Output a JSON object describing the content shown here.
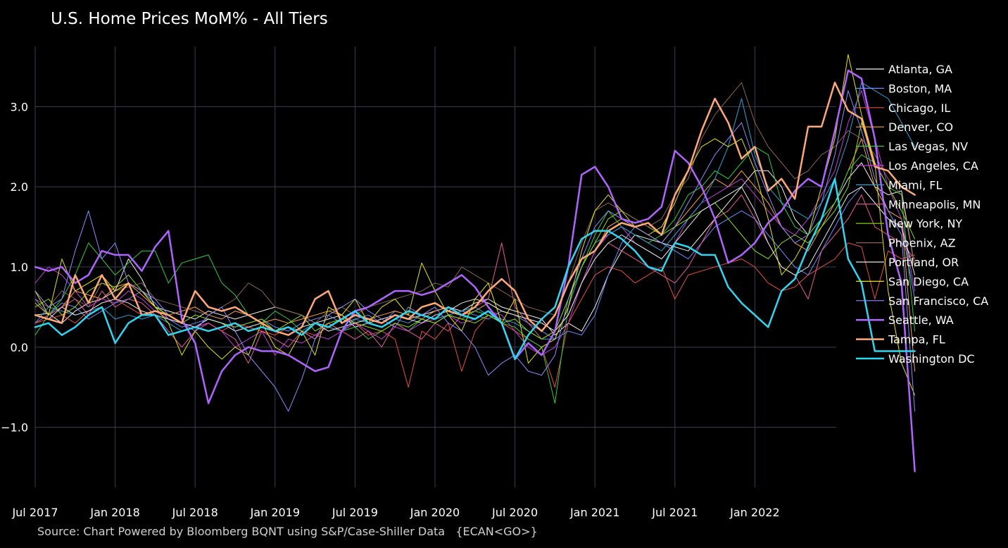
{
  "chart_data": {
    "type": "line",
    "title": "U.S. Home Prices MoM% - All Tiers",
    "source": "Source: Chart Powered by Bloomberg BQNT using S&P/Case-Shiller Data   {ECAN<GO>}",
    "xlabel": "",
    "ylabel": "",
    "x_start": "2017-07",
    "x_end": "2022-07",
    "ylim": [
      -1.75,
      3.75
    ],
    "y_ticks": [
      -1.0,
      0.0,
      1.0,
      2.0,
      3.0
    ],
    "y_tick_labels": [
      "−1.0",
      "0.0",
      "1.0",
      "2.0",
      "3.0"
    ],
    "x_ticks": [
      "2017-07",
      "2018-01",
      "2018-07",
      "2019-01",
      "2019-07",
      "2020-01",
      "2020-07",
      "2021-01",
      "2021-07",
      "2022-01"
    ],
    "x_tick_labels": [
      "Jul 2017",
      "Jan 2018",
      "Jul 2018",
      "Jan 2019",
      "Jul 2019",
      "Jan 2020",
      "Jul 2020",
      "Jan 2021",
      "Jul 2021",
      "Jan 2022"
    ],
    "grid": true,
    "legend_position": "right",
    "background": "#000000",
    "grid_color": "#3a3d52",
    "series": [
      {
        "name": "Atlanta, GA",
        "color": "#f2f2f2",
        "width": 1,
        "values": [
          0.4,
          0.42,
          0.3,
          0.45,
          0.55,
          0.6,
          0.7,
          1.1,
          0.85,
          0.5,
          0.45,
          0.4,
          0.35,
          0.45,
          0.4,
          0.35,
          0.4,
          0.45,
          0.5,
          0.45,
          0.4,
          0.3,
          0.35,
          0.4,
          0.25,
          0.3,
          0.35,
          0.4,
          0.35,
          0.4,
          0.45,
          0.5,
          0.45,
          0.55,
          0.6,
          0.5,
          0.45,
          0.4,
          0.35,
          0.15,
          0.3,
          0.2,
          0.5,
          0.9,
          1.2,
          1.4,
          1.35,
          1.3,
          1.25,
          1.2,
          1.4,
          1.6,
          1.8,
          2.0,
          2.2,
          2.2,
          2.0,
          1.6,
          1.4,
          1.6,
          1.8,
          2.1,
          2.3,
          2.0,
          1.9,
          1.95,
          1.0
        ]
      },
      {
        "name": "Boston, MA",
        "color": "#6b8cff",
        "width": 1,
        "values": [
          0.6,
          0.4,
          0.55,
          0.5,
          0.35,
          0.45,
          0.55,
          0.6,
          0.7,
          0.55,
          0.35,
          0.25,
          0.3,
          0.35,
          0.3,
          0.25,
          0.3,
          0.35,
          0.25,
          0.2,
          0.3,
          0.35,
          0.4,
          0.3,
          0.35,
          0.4,
          0.3,
          0.45,
          0.4,
          0.35,
          0.3,
          0.4,
          0.45,
          0.4,
          0.35,
          0.45,
          0.4,
          0.3,
          0.2,
          0.1,
          0.2,
          0.15,
          0.4,
          0.9,
          1.3,
          1.5,
          1.4,
          1.3,
          1.2,
          1.1,
          1.3,
          1.5,
          1.6,
          1.7,
          1.6,
          1.4,
          1.2,
          1.0,
          0.9,
          1.2,
          1.5,
          1.8,
          2.0,
          1.8,
          1.6,
          1.5,
          0.6
        ]
      },
      {
        "name": "Chicago, IL",
        "color": "#e8503a",
        "width": 1,
        "values": [
          0.3,
          0.35,
          0.4,
          0.3,
          0.45,
          0.55,
          0.6,
          0.5,
          0.4,
          0.45,
          0.35,
          0.3,
          0.25,
          0.3,
          0.2,
          0.3,
          0.25,
          0.2,
          0.15,
          0.25,
          0.2,
          0.15,
          0.25,
          0.2,
          0.3,
          0.15,
          0.2,
          0.1,
          -0.5,
          0.2,
          0.1,
          0.3,
          -0.3,
          0.2,
          0.4,
          0.3,
          0.2,
          0.1,
          0.0,
          -0.5,
          0.3,
          0.6,
          0.9,
          1.0,
          0.95,
          0.8,
          0.9,
          1.0,
          0.6,
          0.9,
          0.95,
          1.0,
          1.05,
          1.1,
          1.0,
          0.8,
          0.7,
          0.75,
          0.9,
          1.0,
          1.1,
          1.3,
          1.25,
          0.6,
          1.2,
          1.1,
          1.15
        ]
      },
      {
        "name": "Denver, CO",
        "color": "#ffa040",
        "width": 1,
        "values": [
          0.55,
          0.4,
          0.5,
          0.7,
          0.65,
          0.6,
          0.75,
          0.8,
          0.65,
          0.5,
          0.4,
          0.45,
          0.5,
          0.4,
          0.35,
          0.45,
          0.4,
          0.3,
          0.35,
          0.3,
          0.35,
          0.4,
          0.45,
          0.4,
          0.3,
          0.35,
          0.4,
          0.45,
          0.4,
          0.35,
          0.45,
          0.5,
          0.4,
          0.45,
          0.55,
          0.45,
          0.4,
          0.35,
          0.3,
          0.2,
          0.4,
          0.8,
          1.2,
          1.5,
          1.6,
          1.5,
          1.4,
          1.3,
          1.5,
          1.7,
          1.9,
          2.1,
          2.0,
          2.2,
          2.0,
          1.8,
          1.5,
          1.3,
          1.2,
          1.5,
          1.8,
          2.2,
          2.6,
          2.0,
          1.7,
          1.6,
          -0.3
        ]
      },
      {
        "name": "Las Vegas, NV",
        "color": "#2ecc40",
        "width": 1,
        "values": [
          0.15,
          0.4,
          0.6,
          0.9,
          1.3,
          1.1,
          0.9,
          1.05,
          1.2,
          1.2,
          0.8,
          1.05,
          1.1,
          1.15,
          0.8,
          0.65,
          0.4,
          0.3,
          0.45,
          0.35,
          0.2,
          0.1,
          0.3,
          0.2,
          0.25,
          0.1,
          0.2,
          0.3,
          0.2,
          0.35,
          0.3,
          0.4,
          0.35,
          0.45,
          0.4,
          0.3,
          0.25,
          0.1,
          0.0,
          -0.7,
          0.5,
          1.0,
          1.4,
          1.7,
          1.5,
          1.4,
          1.3,
          1.4,
          1.6,
          1.9,
          2.0,
          2.2,
          2.1,
          2.3,
          2.5,
          2.4,
          1.8,
          1.5,
          1.4,
          1.6,
          1.8,
          2.2,
          2.4,
          2.3,
          2.0,
          1.9,
          0.2
        ]
      },
      {
        "name": "Los Angeles, CA",
        "color": "#c23cd9",
        "width": 1,
        "values": [
          0.8,
          1.0,
          0.9,
          0.7,
          0.5,
          0.6,
          0.55,
          0.7,
          0.6,
          0.45,
          0.35,
          0.3,
          0.25,
          0.3,
          0.2,
          0.0,
          0.1,
          0.2,
          -0.1,
          0.1,
          0.05,
          0.15,
          0.1,
          0.2,
          0.3,
          0.2,
          0.1,
          0.25,
          0.2,
          0.3,
          0.35,
          0.4,
          0.3,
          0.35,
          0.45,
          0.4,
          0.2,
          0.0,
          -0.1,
          0.0,
          0.3,
          0.8,
          1.2,
          1.4,
          1.5,
          1.3,
          1.2,
          1.1,
          1.3,
          1.6,
          1.8,
          1.9,
          2.0,
          2.1,
          1.9,
          1.7,
          1.5,
          1.4,
          1.6,
          1.9,
          2.2,
          2.8,
          3.2,
          2.6,
          2.0,
          1.6,
          0.7
        ]
      },
      {
        "name": "Miami, FL",
        "color": "#2aa3d6",
        "width": 1,
        "values": [
          0.3,
          0.5,
          0.45,
          0.4,
          0.45,
          0.5,
          0.35,
          0.4,
          0.35,
          0.4,
          0.3,
          0.2,
          0.25,
          0.35,
          0.3,
          0.2,
          0.25,
          0.3,
          0.2,
          0.25,
          0.2,
          0.3,
          0.25,
          0.2,
          0.35,
          0.3,
          0.25,
          0.35,
          0.3,
          0.4,
          0.35,
          0.4,
          0.45,
          0.5,
          0.4,
          0.35,
          0.3,
          0.2,
          0.1,
          0.1,
          0.5,
          1.0,
          1.3,
          1.4,
          1.5,
          1.4,
          1.3,
          1.2,
          1.4,
          1.6,
          1.8,
          2.1,
          2.5,
          3.1,
          2.4,
          2.0,
          1.8,
          1.7,
          1.6,
          1.8,
          2.1,
          2.6,
          3.3,
          3.2,
          3.1,
          2.8,
          2.5
        ]
      },
      {
        "name": "Minneapolis, MN",
        "color": "#e85a9a",
        "width": 1,
        "values": [
          0.3,
          0.4,
          0.5,
          0.6,
          0.4,
          0.7,
          0.5,
          0.6,
          0.55,
          0.4,
          0.2,
          0.0,
          0.2,
          0.3,
          0.2,
          0.1,
          -0.2,
          0.2,
          0.1,
          0.0,
          0.2,
          0.1,
          0.3,
          0.2,
          0.1,
          0.2,
          0.0,
          0.3,
          0.2,
          0.1,
          0.3,
          0.2,
          0.4,
          0.5,
          0.6,
          1.3,
          0.5,
          0.3,
          0.1,
          0.2,
          0.4,
          0.8,
          1.1,
          1.3,
          1.2,
          1.1,
          1.0,
          0.9,
          0.8,
          1.0,
          1.3,
          1.6,
          1.7,
          1.9,
          1.6,
          1.3,
          1.0,
          0.9,
          0.6,
          1.2,
          1.4,
          1.6,
          1.9,
          1.5,
          1.4,
          1.3,
          1.1
        ]
      },
      {
        "name": "New York, NY",
        "color": "#8ee000",
        "width": 1,
        "values": [
          0.5,
          0.6,
          0.4,
          0.5,
          0.7,
          0.8,
          0.75,
          0.9,
          0.7,
          0.5,
          0.4,
          0.3,
          0.4,
          0.35,
          0.3,
          0.25,
          0.3,
          0.35,
          0.2,
          0.3,
          0.4,
          0.2,
          0.3,
          0.35,
          0.3,
          0.25,
          0.2,
          0.3,
          0.25,
          0.35,
          0.3,
          0.4,
          0.35,
          0.3,
          0.4,
          0.3,
          0.35,
          0.2,
          0.1,
          0.2,
          0.6,
          1.0,
          1.3,
          1.6,
          1.7,
          1.6,
          1.5,
          1.4,
          1.5,
          1.6,
          1.7,
          1.8,
          1.6,
          1.4,
          1.2,
          1.1,
          1.3,
          1.4,
          1.3,
          1.5,
          1.7,
          2.0,
          2.8,
          2.3,
          2.0,
          1.7,
          1.35
        ]
      },
      {
        "name": "Phoenix, AZ",
        "color": "#8b6356",
        "width": 1,
        "values": [
          0.6,
          0.5,
          0.7,
          0.6,
          0.5,
          0.8,
          0.7,
          0.75,
          0.8,
          0.6,
          0.55,
          0.5,
          0.45,
          0.4,
          0.5,
          0.6,
          0.8,
          0.7,
          0.5,
          0.45,
          0.4,
          0.3,
          0.45,
          0.5,
          0.4,
          0.5,
          0.55,
          0.6,
          0.65,
          0.7,
          0.8,
          0.75,
          1.0,
          0.9,
          0.8,
          0.7,
          0.6,
          0.5,
          0.45,
          0.4,
          0.8,
          1.3,
          1.7,
          1.8,
          1.7,
          1.6,
          1.5,
          1.6,
          1.9,
          2.1,
          2.6,
          2.9,
          3.1,
          3.3,
          2.8,
          2.5,
          2.3,
          2.1,
          2.2,
          2.4,
          2.5,
          2.7,
          2.6,
          2.4,
          2.1,
          1.9,
          1.0
        ]
      },
      {
        "name": "Portland, OR",
        "color": "#e8e8e8",
        "width": 1,
        "values": [
          0.4,
          0.35,
          0.5,
          0.4,
          0.45,
          0.55,
          0.6,
          0.55,
          0.45,
          0.4,
          0.35,
          0.3,
          0.25,
          0.35,
          0.3,
          0.2,
          0.25,
          0.3,
          0.2,
          0.15,
          0.25,
          0.3,
          0.2,
          0.25,
          0.3,
          0.35,
          0.3,
          0.4,
          0.35,
          0.3,
          0.4,
          0.45,
          0.55,
          0.6,
          0.55,
          0.45,
          0.4,
          0.35,
          0.3,
          0.2,
          0.4,
          0.8,
          1.1,
          1.3,
          1.4,
          1.3,
          1.2,
          1.1,
          1.3,
          1.5,
          1.7,
          1.8,
          1.9,
          2.0,
          1.7,
          1.3,
          1.0,
          0.9,
          1.0,
          1.3,
          1.6,
          1.9,
          2.0,
          1.8,
          1.6,
          1.5,
          0.9
        ]
      },
      {
        "name": "San Diego, CA",
        "color": "#e6e600",
        "width": 1,
        "values": [
          0.7,
          0.4,
          1.1,
          0.7,
          0.8,
          0.9,
          0.7,
          0.8,
          0.7,
          0.5,
          0.3,
          -0.1,
          0.2,
          0.0,
          -0.15,
          0.0,
          -0.1,
          0.3,
          0.0,
          -0.1,
          0.2,
          -0.1,
          0.5,
          0.4,
          0.6,
          0.3,
          0.5,
          0.6,
          0.4,
          1.05,
          0.7,
          0.4,
          0.2,
          0.6,
          0.8,
          0.3,
          0.6,
          -0.2,
          0.0,
          0.1,
          0.5,
          1.2,
          1.7,
          1.9,
          1.7,
          1.5,
          1.4,
          1.5,
          1.8,
          2.2,
          2.5,
          2.6,
          2.5,
          2.6,
          2.2,
          1.6,
          0.9,
          1.1,
          1.4,
          2.0,
          2.6,
          3.65,
          2.9,
          2.3,
          0.7,
          -0.2,
          -0.6
        ]
      },
      {
        "name": "San Francisco, CA",
        "color": "#8c8cff",
        "width": 1,
        "values": [
          0.7,
          0.5,
          0.6,
          1.2,
          1.7,
          1.1,
          1.3,
          0.8,
          0.7,
          0.6,
          0.4,
          0.3,
          0.2,
          0.4,
          0.5,
          0.2,
          -0.1,
          -0.3,
          -0.5,
          -0.8,
          -0.4,
          0.1,
          0.4,
          0.5,
          0.6,
          0.45,
          0.35,
          0.25,
          0.5,
          0.4,
          0.5,
          0.3,
          0.2,
          0.0,
          -0.35,
          -0.2,
          -0.1,
          -0.3,
          -0.35,
          -0.1,
          0.6,
          1.1,
          1.5,
          1.7,
          1.6,
          1.5,
          1.4,
          1.3,
          1.5,
          1.8,
          2.1,
          2.4,
          2.6,
          2.8,
          2.3,
          1.9,
          1.5,
          1.3,
          1.4,
          1.8,
          2.4,
          3.2,
          2.7,
          2.1,
          1.7,
          1.4,
          -0.8
        ]
      },
      {
        "name": "Seattle, WA",
        "color": "#b064ff",
        "width": 2.5,
        "values": [
          1.0,
          0.95,
          1.0,
          0.8,
          0.9,
          1.2,
          1.15,
          1.15,
          0.95,
          1.25,
          1.45,
          0.35,
          0.05,
          -0.7,
          -0.3,
          -0.1,
          0.0,
          -0.05,
          -0.05,
          -0.1,
          -0.2,
          -0.3,
          -0.25,
          0.2,
          0.45,
          0.5,
          0.6,
          0.7,
          0.7,
          0.65,
          0.7,
          0.8,
          0.9,
          0.75,
          0.5,
          0.3,
          -0.15,
          0.05,
          -0.1,
          0.2,
          1.0,
          2.15,
          2.25,
          2.0,
          1.6,
          1.55,
          1.6,
          1.75,
          2.45,
          2.3,
          2.0,
          1.6,
          1.05,
          1.15,
          1.3,
          1.55,
          1.7,
          1.95,
          2.1,
          2.0,
          2.7,
          3.45,
          3.35,
          2.6,
          1.4,
          0.8,
          -1.55
        ]
      },
      {
        "name": "Tampa, FL",
        "color": "#ffa878",
        "width": 2.5,
        "values": [
          0.4,
          0.35,
          0.3,
          0.9,
          0.55,
          0.9,
          0.6,
          0.8,
          0.4,
          0.45,
          0.4,
          0.3,
          0.7,
          0.5,
          0.45,
          0.5,
          0.4,
          0.3,
          0.2,
          0.15,
          0.25,
          0.6,
          0.7,
          0.3,
          0.4,
          0.35,
          0.3,
          0.4,
          0.35,
          0.5,
          0.55,
          0.45,
          0.4,
          0.5,
          0.7,
          0.85,
          0.7,
          0.35,
          0.2,
          0.4,
          0.8,
          1.1,
          1.2,
          1.45,
          1.55,
          1.5,
          1.55,
          1.4,
          1.9,
          2.2,
          2.7,
          3.1,
          2.8,
          2.35,
          2.5,
          1.95,
          2.1,
          1.85,
          2.75,
          2.75,
          3.3,
          2.95,
          2.85,
          2.25,
          2.2,
          2.0,
          1.9
        ]
      },
      {
        "name": "Washington DC",
        "color": "#2ed6f2",
        "width": 2.5,
        "values": [
          0.25,
          0.3,
          0.15,
          0.25,
          0.4,
          0.5,
          0.05,
          0.3,
          0.4,
          0.4,
          0.15,
          0.2,
          0.25,
          0.2,
          0.25,
          0.3,
          0.2,
          0.25,
          0.2,
          0.25,
          0.15,
          0.3,
          0.25,
          0.35,
          0.45,
          0.3,
          0.25,
          0.35,
          0.45,
          0.4,
          0.35,
          0.5,
          0.4,
          0.35,
          0.45,
          0.3,
          -0.15,
          0.15,
          0.35,
          0.5,
          1.0,
          1.35,
          1.45,
          1.45,
          1.35,
          1.2,
          1.0,
          0.95,
          1.3,
          1.25,
          1.15,
          1.15,
          0.75,
          0.55,
          0.4,
          0.25,
          0.7,
          0.85,
          1.25,
          1.6,
          2.1,
          1.1,
          0.8,
          -0.05,
          -0.05,
          -0.05,
          -0.05
        ]
      }
    ]
  }
}
